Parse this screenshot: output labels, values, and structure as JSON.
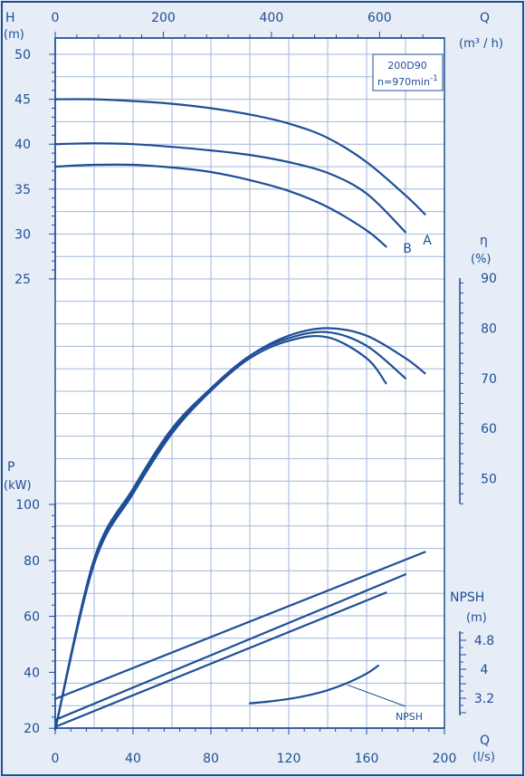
{
  "chart_data": {
    "type": "line",
    "model": "200D90",
    "speed": "n=970min",
    "speed_exp": "-1",
    "curve_labels": [
      "A",
      "B"
    ],
    "npsh_note": "NPSH",
    "axes": {
      "q_ls": {
        "label": "Q",
        "unit": "(l/s)",
        "min": 0,
        "max": 200,
        "ticks": [
          0,
          40,
          80,
          120,
          160,
          200
        ]
      },
      "q_m3h": {
        "label": "Q",
        "unit": "(m³ / h)",
        "ticks": [
          0,
          200,
          400,
          600
        ]
      },
      "head": {
        "label": "H",
        "unit": "(m)",
        "min": 25,
        "max": 50,
        "ticks": [
          25,
          30,
          35,
          40,
          45,
          50
        ]
      },
      "eff": {
        "label": "η",
        "unit": "(%)",
        "min": 45,
        "max": 90,
        "ticks": [
          50,
          60,
          70,
          80,
          90
        ]
      },
      "power": {
        "label": "P",
        "unit": "(kW)",
        "min": 20,
        "max": 100,
        "ticks": [
          20,
          40,
          60,
          80,
          100
        ]
      },
      "npsh": {
        "label": "NPSH",
        "unit": "(m)",
        "min": 2.8,
        "max": 5.0,
        "ticks": [
          3.2,
          4,
          4.8
        ]
      }
    },
    "series": [
      {
        "group": "head",
        "x": [
          0,
          20,
          40,
          60,
          80,
          100,
          120,
          140,
          160,
          180,
          190
        ],
        "y": [
          45,
          45,
          44.8,
          44.5,
          44,
          43.3,
          42.3,
          40.7,
          38,
          34.3,
          32.2
        ]
      },
      {
        "group": "head",
        "name": "A",
        "x": [
          0,
          20,
          40,
          60,
          80,
          100,
          120,
          140,
          160,
          180
        ],
        "y": [
          40,
          40.1,
          40,
          39.7,
          39.3,
          38.8,
          38,
          36.8,
          34.5,
          30.2
        ]
      },
      {
        "group": "head",
        "name": "B",
        "x": [
          0,
          20,
          40,
          60,
          80,
          100,
          120,
          140,
          160,
          170
        ],
        "y": [
          37.5,
          37.7,
          37.7,
          37.4,
          36.9,
          36,
          34.8,
          33,
          30.4,
          28.6
        ]
      },
      {
        "group": "eff",
        "x": [
          0,
          20,
          40,
          60,
          80,
          100,
          120,
          140,
          160,
          180,
          190
        ],
        "y": [
          0,
          34,
          48,
          60,
          68,
          74.5,
          78.5,
          80,
          78.5,
          74,
          71
        ]
      },
      {
        "group": "eff",
        "x": [
          0,
          20,
          40,
          60,
          80,
          100,
          120,
          140,
          160,
          180
        ],
        "y": [
          0,
          33.5,
          47.5,
          59.5,
          68,
          74.5,
          78,
          79.2,
          76.5,
          70
        ]
      },
      {
        "group": "eff",
        "x": [
          0,
          20,
          40,
          60,
          80,
          100,
          120,
          140,
          160,
          170
        ],
        "y": [
          0,
          33,
          47,
          59,
          67.5,
          74,
          77.5,
          78.2,
          74,
          69
        ]
      },
      {
        "group": "power",
        "x": [
          0,
          190
        ],
        "y": [
          30.5,
          83
        ]
      },
      {
        "group": "power",
        "x": [
          0,
          180
        ],
        "y": [
          23,
          75
        ]
      },
      {
        "group": "power",
        "x": [
          0,
          170
        ],
        "y": [
          20.5,
          68.5
        ]
      },
      {
        "group": "npsh",
        "name": "NPSH",
        "x": [
          100,
          110,
          120,
          130,
          140,
          150,
          160,
          166
        ],
        "y": [
          3.06,
          3.11,
          3.18,
          3.28,
          3.42,
          3.62,
          3.88,
          4.1
        ]
      }
    ],
    "grid": true,
    "colors": {
      "line": "#1f4e96",
      "grid": "#9fb7d9",
      "background": "#e6edf6",
      "plot": "#ffffff"
    }
  }
}
